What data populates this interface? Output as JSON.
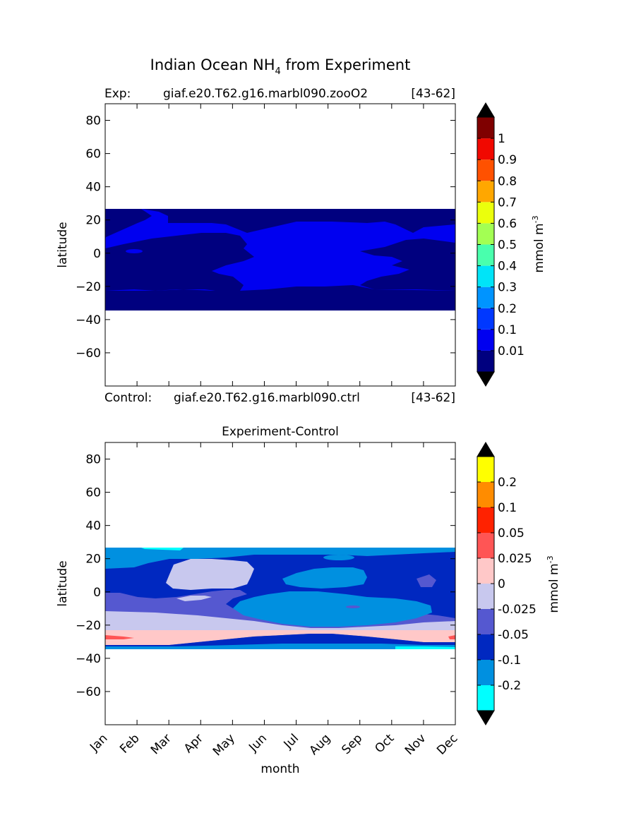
{
  "figure": {
    "title_main": "Indian Ocean NH",
    "title_sub": "4",
    "title_tail": " from Experiment"
  },
  "top_panel": {
    "exp_label": "Exp:",
    "exp_case": "giaf.e20.T62.g16.marbl090.zooO2",
    "exp_years": "[43-62]",
    "ctrl_label": "Control:",
    "ctrl_case": "giaf.e20.T62.g16.marbl090.ctrl",
    "ctrl_years": "[43-62]",
    "ylabel": "latitude"
  },
  "bottom_panel": {
    "title": "Experiment-Control",
    "ylabel": "latitude",
    "xlabel": "month"
  },
  "chart_data": [
    {
      "type": "heatmap",
      "title": "Indian Ocean NH4 from Experiment",
      "ylabel": "latitude",
      "x_categories": [
        "Jan",
        "Feb",
        "Mar",
        "Apr",
        "May",
        "Jun",
        "Jul",
        "Aug",
        "Sep",
        "Oct",
        "Nov",
        "Dec"
      ],
      "ylim": [
        -80,
        90
      ],
      "yticks": [
        80,
        60,
        40,
        20,
        0,
        -20,
        -40,
        -60
      ],
      "data_lat_range": [
        -34,
        27
      ],
      "colorbar": {
        "label": "mmol m",
        "label_sup": "-3",
        "tick_labels": [
          "0.01",
          "0.1",
          "0.2",
          "0.3",
          "0.4",
          "0.5",
          "0.6",
          "0.7",
          "0.8",
          "0.9",
          "1"
        ],
        "colors": [
          "#00007f",
          "#0000f0",
          "#0038ff",
          "#0094ff",
          "#00e4f8",
          "#49ffad",
          "#a3ff53",
          "#ebff0c",
          "#ffa700",
          "#ff5100",
          "#f10800",
          "#7f0000"
        ],
        "extend": "both"
      },
      "fields": [
        "level 1 (0.01-0.1) dominant in central months, level 0 (<0.01) at edges"
      ]
    },
    {
      "type": "heatmap",
      "title": "Experiment-Control",
      "xlabel": "month",
      "ylabel": "latitude",
      "x_categories": [
        "Jan",
        "Feb",
        "Mar",
        "Apr",
        "May",
        "Jun",
        "Jul",
        "Aug",
        "Sep",
        "Oct",
        "Nov",
        "Dec"
      ],
      "ylim": [
        -80,
        90
      ],
      "yticks": [
        80,
        60,
        40,
        20,
        0,
        -20,
        -40,
        -60
      ],
      "data_lat_range": [
        -34,
        27
      ],
      "colorbar": {
        "label": "mmol m",
        "label_sup": "-3",
        "tick_labels": [
          "-0.2",
          "-0.1",
          "-0.05",
          "-0.025",
          "0",
          "0.025",
          "0.05",
          "0.1",
          "0.2"
        ],
        "colors": [
          "#00ffff",
          "#0090e0",
          "#0028c0",
          "#5558d0",
          "#c8c8ee",
          "#ffc8c8",
          "#ff5555",
          "#ff2200",
          "#ff8c00",
          "#ffff00"
        ],
        "extend": "both"
      }
    }
  ],
  "colors": {
    "top_bg": "#0000f0",
    "top_dark": "#00007f",
    "diff_cyan": "#00ffff",
    "diff_lightblue": "#0090e0",
    "diff_blue": "#0028c0",
    "diff_purple": "#5558d0",
    "diff_lavender": "#c8c8ee",
    "diff_pink": "#ffc8c8",
    "diff_red": "#ff5555"
  }
}
